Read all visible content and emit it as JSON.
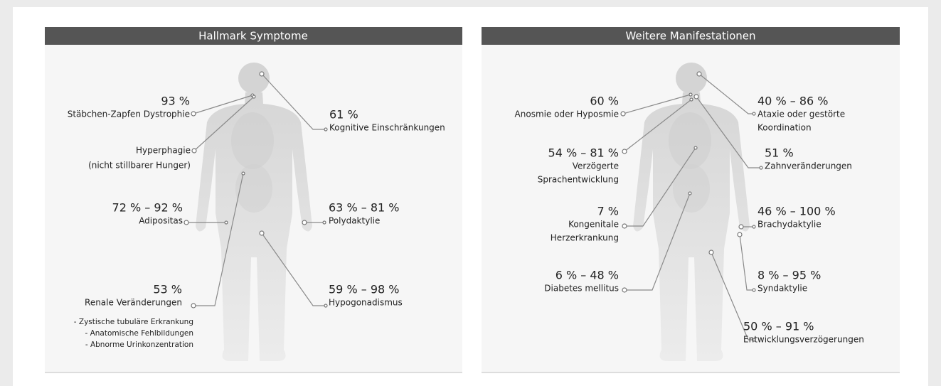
{
  "panels": [
    {
      "title": "Hallmark Symptome",
      "annotations": [
        {
          "value": "93 %",
          "lines": [
            "Stäbchen-Zapfen Dystrophie"
          ]
        },
        {
          "value": "61 %",
          "lines": [
            "Kognitive Einschränkungen"
          ]
        },
        {
          "lines": [
            "Hyperphagie",
            "(nicht stillbarer Hunger)"
          ]
        },
        {
          "value": "72 % – 92 %",
          "lines": [
            "Adipositas"
          ]
        },
        {
          "value": "63 % – 81 %",
          "lines": [
            "Polydaktylie"
          ]
        },
        {
          "value": "53 %",
          "lines": [
            "Renale Veränderungen"
          ],
          "notes": [
            "- Zystische tubuläre Erkrankung",
            "- Anatomische Fehlbildungen",
            "- Abnorme Urinkonzentration"
          ]
        },
        {
          "value": "59 % – 98 %",
          "lines": [
            "Hypogonadismus"
          ]
        }
      ]
    },
    {
      "title": "Weitere Manifestationen",
      "annotations": [
        {
          "value": "60 %",
          "lines": [
            "Anosmie oder Hyposmie"
          ]
        },
        {
          "value": "40 % – 86 %",
          "lines": [
            "Ataxie oder gestörte",
            "Koordination"
          ]
        },
        {
          "value": "54 % – 81 %",
          "lines": [
            "Verzögerte",
            "Sprachentwicklung"
          ]
        },
        {
          "value": "51 %",
          "lines": [
            "Zahnveränderungen"
          ]
        },
        {
          "value": "7 %",
          "lines": [
            "Kongenitale",
            "Herzerkrankung"
          ]
        },
        {
          "value": "46 % – 100 %",
          "lines": [
            "Brachydaktylie"
          ]
        },
        {
          "value": "6 % – 48 %",
          "lines": [
            "Diabetes mellitus"
          ]
        },
        {
          "value": "8 % – 95 %",
          "lines": [
            "Syndaktylie"
          ]
        },
        {
          "value": "50 % – 91 %",
          "lines": [
            "Entwicklungsverzögerungen"
          ]
        }
      ]
    }
  ]
}
